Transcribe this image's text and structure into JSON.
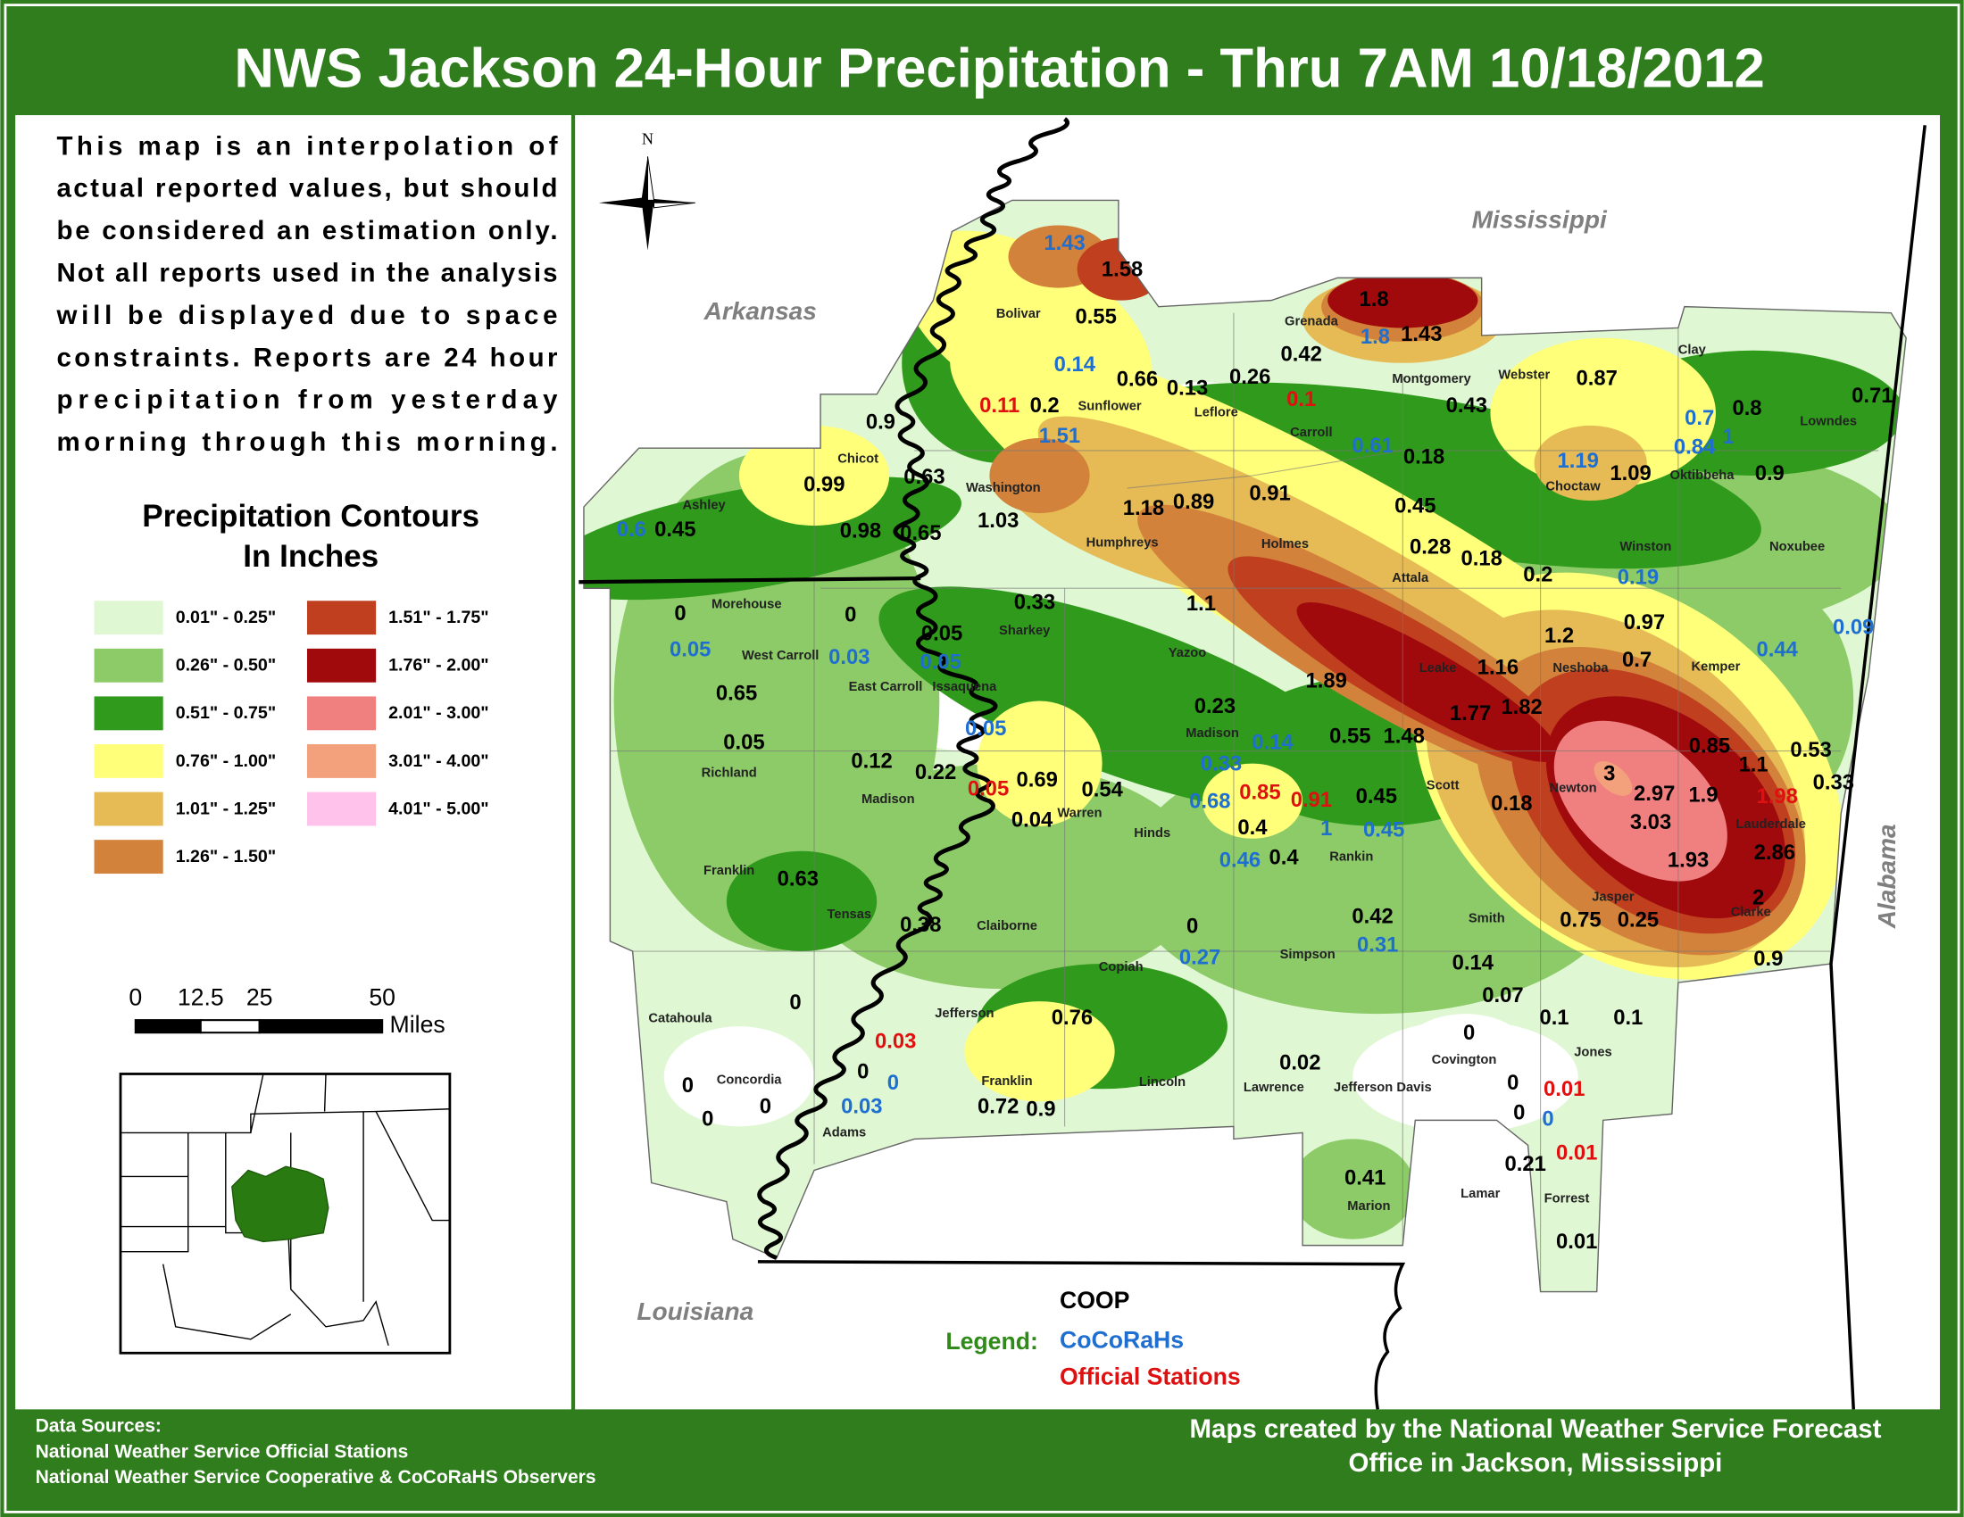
{
  "header": {
    "title": "NWS Jackson 24-Hour Precipitation - Thru 7AM 10/18/2012"
  },
  "description": [
    "This map is an interpolation of",
    "actual reported values, but should",
    "be considered an estimation only.",
    "Not all reports used in the analysis",
    "will be displayed due to space",
    "constraints. Reports are 24 hour",
    "precipitation from yesterday",
    "morning through this morning."
  ],
  "legend": {
    "title_lines": [
      "Precipitation Contours",
      "In Inches"
    ],
    "items": [
      {
        "label": "0.01\" - 0.25\"",
        "color": "#dff7d2"
      },
      {
        "label": "0.26\" - 0.50\"",
        "color": "#8ccb68"
      },
      {
        "label": "0.51\" - 0.75\"",
        "color": "#2f9a1b"
      },
      {
        "label": "0.76\" - 1.00\"",
        "color": "#ffff7a"
      },
      {
        "label": "1.01\" - 1.25\"",
        "color": "#e6bb55"
      },
      {
        "label": "1.26\" - 1.50\"",
        "color": "#d2823a"
      },
      {
        "label": "1.51\" - 1.75\"",
        "color": "#bf3f1e"
      },
      {
        "label": "1.76\" - 2.00\"",
        "color": "#a00a0c"
      },
      {
        "label": "2.01\" - 3.00\"",
        "color": "#f07f80"
      },
      {
        "label": "3.01\" - 4.00\"",
        "color": "#f3a07c"
      },
      {
        "label": "4.01\" - 5.00\"",
        "color": "#ffc2ea"
      }
    ]
  },
  "scale_bar": {
    "ticks": [
      "0",
      "12.5",
      "25",
      "50"
    ],
    "unit": "Miles"
  },
  "compass_label": "N",
  "states": [
    "Arkansas",
    "Mississippi",
    "Louisiana",
    "Alabama"
  ],
  "counties": [
    "Bolivar",
    "Grenada",
    "Montgomery",
    "Webster",
    "Clay",
    "Sunflower",
    "Leflore",
    "Carroll",
    "Lowndes",
    "Chicot",
    "Ashley",
    "Washington",
    "Choctaw",
    "Oktibbeha",
    "Humphreys",
    "Holmes",
    "Attala",
    "Winston",
    "Noxubee",
    "Morehouse",
    "Sharkey",
    "West Carroll",
    "Yazoo",
    "East Carroll",
    "Issaquena",
    "Leake",
    "Neshoba",
    "Kemper",
    "Madison",
    "Richland",
    "Madison",
    "Scott",
    "Newton",
    "Warren",
    "Hinds",
    "Lauderdale",
    "Rankin",
    "Franklin",
    "Tensas",
    "Jasper",
    "Clarke",
    "Smith",
    "Claiborne",
    "Copiah",
    "Simpson",
    "Catahoula",
    "Jefferson",
    "Covington",
    "Jones",
    "Concordia",
    "Franklin",
    "Lincoln",
    "Lawrence",
    "Jefferson Davis",
    "Adams",
    "Marion",
    "Lamar",
    "Forrest"
  ],
  "stations": [
    {
      "value": "1.43",
      "network": 1
    },
    {
      "value": "1.58",
      "network": 0
    },
    {
      "value": "0.55",
      "network": 0
    },
    {
      "value": "1.8",
      "network": 0
    },
    {
      "value": "1.8",
      "network": 1
    },
    {
      "value": "1.43",
      "network": 0
    },
    {
      "value": "0.42",
      "network": 0
    },
    {
      "value": "0.14",
      "network": 1
    },
    {
      "value": "0.66",
      "network": 0
    },
    {
      "value": "0.13",
      "network": 0
    },
    {
      "value": "0.26",
      "network": 0
    },
    {
      "value": "0.1",
      "network": 2
    },
    {
      "value": "0.87",
      "network": 0
    },
    {
      "value": "0.7",
      "network": 1
    },
    {
      "value": "0.8",
      "network": 0
    },
    {
      "value": "0.71",
      "network": 0
    },
    {
      "value": "0.43",
      "network": 0
    },
    {
      "value": "0.11",
      "network": 2
    },
    {
      "value": "0.2",
      "network": 0
    },
    {
      "value": "0.9",
      "network": 0
    },
    {
      "value": "1.51",
      "network": 1
    },
    {
      "value": "0.61",
      "network": 1
    },
    {
      "value": "0.18",
      "network": 0
    },
    {
      "value": "0.84",
      "network": 1
    },
    {
      "value": "1",
      "network": 1
    },
    {
      "value": "1.19",
      "network": 1
    },
    {
      "value": "1.09",
      "network": 0
    },
    {
      "value": "0.9",
      "network": 0
    },
    {
      "value": "0.63",
      "network": 0
    },
    {
      "value": "0.99",
      "network": 0
    },
    {
      "value": "1.03",
      "network": 0
    },
    {
      "value": "1.18",
      "network": 0
    },
    {
      "value": "0.89",
      "network": 0
    },
    {
      "value": "0.91",
      "network": 0
    },
    {
      "value": "0.45",
      "network": 0
    },
    {
      "value": "0.6",
      "network": 1
    },
    {
      "value": "0.45",
      "network": 0
    },
    {
      "value": "0.98",
      "network": 0
    },
    {
      "value": "0.65",
      "network": 0
    },
    {
      "value": "0.28",
      "network": 0
    },
    {
      "value": "0.18",
      "network": 0
    },
    {
      "value": "0.2",
      "network": 0
    },
    {
      "value": "0.19",
      "network": 1
    },
    {
      "value": "0.33",
      "network": 0
    },
    {
      "value": "1.1",
      "network": 0
    },
    {
      "value": "0",
      "network": 0
    },
    {
      "value": "0",
      "network": 0
    },
    {
      "value": "0.05",
      "network": 0
    },
    {
      "value": "0.97",
      "network": 0
    },
    {
      "value": "1.2",
      "network": 0
    },
    {
      "value": "0.09",
      "network": 1
    },
    {
      "value": "0.05",
      "network": 1
    },
    {
      "value": "0.03",
      "network": 1
    },
    {
      "value": "0.05",
      "network": 1
    },
    {
      "value": "0.7",
      "network": 0
    },
    {
      "value": "0.44",
      "network": 1
    },
    {
      "value": "1.16",
      "network": 0
    },
    {
      "value": "1.89",
      "network": 0
    },
    {
      "value": "0.65",
      "network": 0
    },
    {
      "value": "0.23",
      "network": 0
    },
    {
      "value": "1.77",
      "network": 0
    },
    {
      "value": "1.82",
      "network": 0
    },
    {
      "value": "0.05",
      "network": 1
    },
    {
      "value": "0.05",
      "network": 0
    },
    {
      "value": "0.14",
      "network": 1
    },
    {
      "value": "0.55",
      "network": 0
    },
    {
      "value": "1.48",
      "network": 0
    },
    {
      "value": "0.85",
      "network": 0
    },
    {
      "value": "1.1",
      "network": 0
    },
    {
      "value": "0.53",
      "network": 0
    },
    {
      "value": "0.12",
      "network": 0
    },
    {
      "value": "0.22",
      "network": 0
    },
    {
      "value": "0.33",
      "network": 1
    },
    {
      "value": "0.69",
      "network": 0
    },
    {
      "value": "0.05",
      "network": 2
    },
    {
      "value": "0.54",
      "network": 0
    },
    {
      "value": "3",
      "network": 0
    },
    {
      "value": "2.97",
      "network": 0
    },
    {
      "value": "1.9",
      "network": 0
    },
    {
      "value": "1.98",
      "network": 2
    },
    {
      "value": "0.33",
      "network": 0
    },
    {
      "value": "0.68",
      "network": 1
    },
    {
      "value": "0.85",
      "network": 2
    },
    {
      "value": "0.91",
      "network": 2
    },
    {
      "value": "0.45",
      "network": 0
    },
    {
      "value": "0.18",
      "network": 0
    },
    {
      "value": "0.04",
      "network": 0
    },
    {
      "value": "0.4",
      "network": 0
    },
    {
      "value": "1",
      "network": 1
    },
    {
      "value": "0.45",
      "network": 1
    },
    {
      "value": "3.03",
      "network": 0
    },
    {
      "value": "0.46",
      "network": 1
    },
    {
      "value": "0.4",
      "network": 0
    },
    {
      "value": "1.93",
      "network": 0
    },
    {
      "value": "2.86",
      "network": 0
    },
    {
      "value": "0.63",
      "network": 0
    },
    {
      "value": "2",
      "network": 0
    },
    {
      "value": "0.38",
      "network": 0
    },
    {
      "value": "0.42",
      "network": 0
    },
    {
      "value": "0.75",
      "network": 0
    },
    {
      "value": "0.25",
      "network": 0
    },
    {
      "value": "0",
      "network": 0
    },
    {
      "value": "0.27",
      "network": 1
    },
    {
      "value": "0.31",
      "network": 1
    },
    {
      "value": "0.14",
      "network": 0
    },
    {
      "value": "0.9",
      "network": 0
    },
    {
      "value": "0.07",
      "network": 0
    },
    {
      "value": "0",
      "network": 0
    },
    {
      "value": "0.76",
      "network": 0
    },
    {
      "value": "0.1",
      "network": 0
    },
    {
      "value": "0.1",
      "network": 0
    },
    {
      "value": "0.03",
      "network": 2
    },
    {
      "value": "0",
      "network": 0
    },
    {
      "value": "0.02",
      "network": 0
    },
    {
      "value": "0",
      "network": 0
    },
    {
      "value": "0",
      "network": 1
    },
    {
      "value": "0",
      "network": 0
    },
    {
      "value": "0",
      "network": 0
    },
    {
      "value": "0.01",
      "network": 2
    },
    {
      "value": "0",
      "network": 0
    },
    {
      "value": "0.03",
      "network": 1
    },
    {
      "value": "0.72",
      "network": 0
    },
    {
      "value": "0.9",
      "network": 0
    },
    {
      "value": "0",
      "network": 0
    },
    {
      "value": "0",
      "network": 0
    },
    {
      "value": "0",
      "network": 1
    },
    {
      "value": "0.01",
      "network": 2
    },
    {
      "value": "0.21",
      "network": 0
    },
    {
      "value": "0.41",
      "network": 0
    },
    {
      "value": "0.01",
      "network": 0
    }
  ],
  "station_legend": {
    "label": "Legend:",
    "items": [
      {
        "name": "COOP",
        "color": "#000000"
      },
      {
        "name": "CoCoRaHs",
        "color": "#1f6fd0"
      },
      {
        "name": "Official Stations",
        "color": "#e01010"
      }
    ]
  },
  "footer": {
    "sources": [
      "Data Sources:",
      "National Weather Service Official Stations",
      "National Weather Service Cooperative & CoCoRaHS Observers"
    ],
    "credit": [
      "Maps created by the National Weather Service Forecast",
      "Office in Jackson, Mississippi"
    ]
  }
}
